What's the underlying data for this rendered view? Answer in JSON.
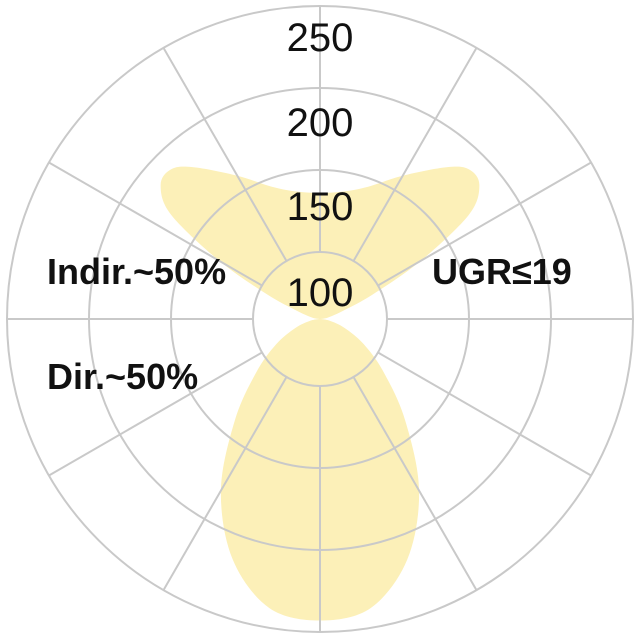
{
  "chart_data": {
    "type": "polar",
    "title": "",
    "radial_ticks": [
      "100",
      "150",
      "200",
      "250"
    ],
    "radial_tick_values": [
      100,
      150,
      200,
      250
    ],
    "spoke_interval_deg": 30,
    "grid": true,
    "fill_color": "#fcf0b8",
    "grid_color": "#c9c9c9",
    "series": [
      {
        "region": "direct (downward), angle from nadir, symmetric",
        "angles": [
          0,
          10,
          20,
          30,
          40,
          50,
          60,
          70,
          80,
          90
        ],
        "values": [
          243,
          238,
          215,
          180,
          140,
          110,
          90,
          75,
          65,
          59
        ]
      },
      {
        "region": "indirect (upward), angle from zenith, symmetric",
        "angles": [
          0,
          10,
          20,
          30,
          40,
          45,
          50,
          55,
          60,
          65,
          70,
          80,
          90
        ],
        "values": [
          136,
          138,
          145,
          160,
          180,
          188,
          186,
          170,
          130,
          95,
          75,
          64,
          59
        ]
      }
    ],
    "annotations": {
      "indirect": "Indir.~50%",
      "direct": "Dir.~50%",
      "ugr": "UGR≤19"
    }
  }
}
